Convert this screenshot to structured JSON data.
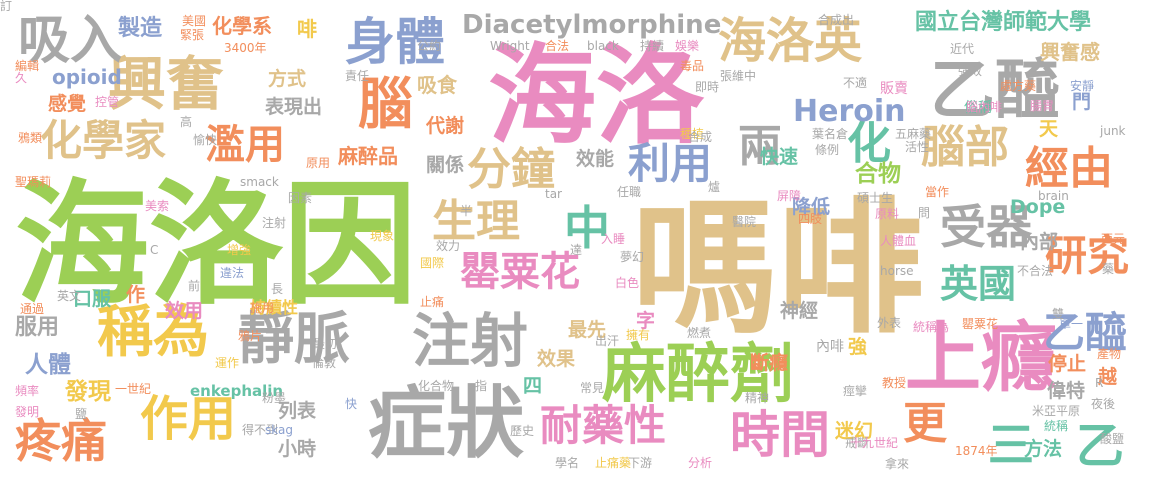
{
  "palette": {
    "tan": "#e0c28a",
    "green": "#9ccf55",
    "pink": "#e98bc0",
    "gray": "#a8a8a8",
    "orange": "#f28e5c",
    "blue": "#8ba0cf",
    "yellow": "#f2c94c",
    "teal": "#66c2a5"
  },
  "words": [
    {
      "text": "嗎啡",
      "color": "tan"
    },
    {
      "text": "海洛因",
      "color": "green"
    },
    {
      "text": "海洛",
      "color": "pink"
    },
    {
      "text": "症狀",
      "color": "gray"
    },
    {
      "text": "上癮",
      "color": "pink"
    },
    {
      "text": "麻醉劑",
      "color": "green"
    },
    {
      "text": "興奮",
      "color": "tan"
    },
    {
      "text": "乙醯",
      "color": "gray"
    },
    {
      "text": "海洛英",
      "color": "tan"
    },
    {
      "text": "吸入",
      "color": "gray"
    },
    {
      "text": "身體",
      "color": "blue"
    },
    {
      "text": "靜脈",
      "color": "gray"
    },
    {
      "text": "注射",
      "color": "gray"
    },
    {
      "text": "稱為",
      "color": "yellow"
    },
    {
      "text": "作用",
      "color": "yellow"
    },
    {
      "text": "疼痛",
      "color": "orange"
    },
    {
      "text": "時間",
      "color": "pink"
    },
    {
      "text": "耐藥性",
      "color": "pink"
    },
    {
      "text": "罌粟花",
      "color": "pink"
    },
    {
      "text": "生理",
      "color": "tan"
    },
    {
      "text": "分鐘",
      "color": "tan"
    },
    {
      "text": "利用",
      "color": "blue"
    },
    {
      "text": "兩",
      "color": "gray"
    },
    {
      "text": "化",
      "color": "teal"
    },
    {
      "text": "腦部",
      "color": "tan"
    },
    {
      "text": "經由",
      "color": "orange"
    },
    {
      "text": "受器",
      "color": "gray"
    },
    {
      "text": "研究",
      "color": "orange"
    },
    {
      "text": "乙醯",
      "color": "blue"
    },
    {
      "text": "英國",
      "color": "teal"
    },
    {
      "text": "中",
      "color": "teal"
    },
    {
      "text": "更",
      "color": "orange"
    },
    {
      "text": "乙",
      "color": "teal"
    },
    {
      "text": "三",
      "color": "teal"
    },
    {
      "text": "腦",
      "color": "orange"
    },
    {
      "text": "化學家",
      "color": "tan"
    },
    {
      "text": "濫用",
      "color": "orange"
    },
    {
      "text": "Diacetylmorphine",
      "color": "gray"
    },
    {
      "text": "國立台灣師範大學",
      "color": "teal"
    },
    {
      "text": "興奮感",
      "color": "tan"
    },
    {
      "text": "Heroin",
      "color": "blue"
    },
    {
      "text": "製造",
      "color": "blue"
    },
    {
      "text": "化學系",
      "color": "orange"
    },
    {
      "text": "麻醉品",
      "color": "orange"
    },
    {
      "text": "表現出",
      "color": "gray"
    },
    {
      "text": "吸食",
      "color": "tan"
    },
    {
      "text": "代謝",
      "color": "orange"
    },
    {
      "text": "關係",
      "color": "gray"
    },
    {
      "text": "效能",
      "color": "gray"
    },
    {
      "text": "快速",
      "color": "teal"
    },
    {
      "text": "合物",
      "color": "green"
    },
    {
      "text": "方式",
      "color": "tan"
    },
    {
      "text": "感覺",
      "color": "orange"
    },
    {
      "text": "opioid",
      "color": "blue"
    },
    {
      "text": "Dope",
      "color": "teal"
    },
    {
      "text": "內部",
      "color": "gray"
    },
    {
      "text": "口服",
      "color": "teal"
    },
    {
      "text": "服用",
      "color": "gray"
    },
    {
      "text": "人體",
      "color": "blue"
    },
    {
      "text": "發現",
      "color": "yellow"
    },
    {
      "text": "效用",
      "color": "pink"
    },
    {
      "text": "最先",
      "color": "tan"
    },
    {
      "text": "效果",
      "color": "tan"
    },
    {
      "text": "字",
      "color": "pink"
    },
    {
      "text": "神經",
      "color": "gray"
    },
    {
      "text": "降低",
      "color": "blue"
    },
    {
      "text": "停止",
      "color": "orange"
    },
    {
      "text": "偉特",
      "color": "gray"
    },
    {
      "text": "方法",
      "color": "teal"
    },
    {
      "text": "迷幻",
      "color": "yellow"
    },
    {
      "text": "斷癮",
      "color": "orange"
    },
    {
      "text": "強",
      "color": "yellow"
    },
    {
      "text": "列表",
      "color": "gray"
    },
    {
      "text": "小時",
      "color": "gray"
    },
    {
      "text": "enkephalin",
      "color": "teal"
    },
    {
      "text": "持續性",
      "color": "yellow"
    },
    {
      "text": "四",
      "color": "teal"
    },
    {
      "text": "天",
      "color": "yellow"
    },
    {
      "text": "門",
      "color": "blue"
    },
    {
      "text": "越",
      "color": "orange"
    },
    {
      "text": "作",
      "color": "orange"
    },
    {
      "text": "內啡",
      "color": "gray"
    },
    {
      "text": "啡",
      "color": "yellow"
    },
    {
      "text": "美國",
      "color": "orange"
    },
    {
      "text": "緊張",
      "color": "orange"
    },
    {
      "text": "3400年",
      "color": "orange"
    },
    {
      "text": "公約",
      "color": "gray"
    },
    {
      "text": "Wright",
      "color": "gray"
    },
    {
      "text": "合法",
      "color": "orange"
    },
    {
      "text": "black",
      "color": "gray"
    },
    {
      "text": "持續",
      "color": "gray"
    },
    {
      "text": "娛樂",
      "color": "pink"
    },
    {
      "text": "合成出",
      "color": "gray"
    },
    {
      "text": "近代",
      "color": "gray"
    },
    {
      "text": "處方藥",
      "color": "orange"
    },
    {
      "text": "安靜",
      "color": "blue"
    },
    {
      "text": "強效",
      "color": "gray"
    },
    {
      "text": "販賣",
      "color": "pink"
    },
    {
      "text": "不適",
      "color": "gray"
    },
    {
      "text": "毒品",
      "color": "orange"
    },
    {
      "text": "張維中",
      "color": "gray"
    },
    {
      "text": "即時",
      "color": "gray"
    },
    {
      "text": "責任",
      "color": "gray"
    },
    {
      "text": "控管",
      "color": "pink"
    },
    {
      "text": "編輯",
      "color": "orange"
    },
    {
      "text": "久",
      "color": "pink"
    },
    {
      "text": "鴉類",
      "color": "orange"
    },
    {
      "text": "聖瑪莉",
      "color": "orange"
    },
    {
      "text": "愉快",
      "color": "gray"
    },
    {
      "text": "原用",
      "color": "orange"
    },
    {
      "text": "種植",
      "color": "yellow"
    },
    {
      "text": "合成",
      "color": "gray"
    },
    {
      "text": "葉名倉",
      "color": "gray"
    },
    {
      "text": "條例",
      "color": "gray"
    },
    {
      "text": "五麻藥",
      "color": "gray"
    },
    {
      "text": "活性",
      "color": "gray"
    },
    {
      "text": "junk",
      "color": "gray"
    },
    {
      "text": "俗稱",
      "color": "teal"
    },
    {
      "text": "腦內啡",
      "color": "pink"
    },
    {
      "text": "腸胃",
      "color": "pink"
    },
    {
      "text": "美索",
      "color": "pink"
    },
    {
      "text": "smack",
      "color": "gray"
    },
    {
      "text": "因素",
      "color": "gray"
    },
    {
      "text": "現象",
      "color": "yellow"
    },
    {
      "text": "效力",
      "color": "gray"
    },
    {
      "text": "任職",
      "color": "gray"
    },
    {
      "text": "tar",
      "color": "gray"
    },
    {
      "text": "爐",
      "color": "gray"
    },
    {
      "text": "醫院",
      "color": "gray"
    },
    {
      "text": "屏障",
      "color": "pink"
    },
    {
      "text": "四肢",
      "color": "orange"
    },
    {
      "text": "碩士生",
      "color": "gray"
    },
    {
      "text": "當作",
      "color": "orange"
    },
    {
      "text": "brain",
      "color": "gray"
    },
    {
      "text": "西元",
      "color": "orange"
    },
    {
      "text": "原料",
      "color": "pink"
    },
    {
      "text": "問",
      "color": "gray"
    },
    {
      "text": "注射",
      "color": "gray"
    },
    {
      "text": "半",
      "color": "gray"
    },
    {
      "text": "國際",
      "color": "yellow"
    },
    {
      "text": "達",
      "color": "gray"
    },
    {
      "text": "入睡",
      "color": "pink"
    },
    {
      "text": "夢幻",
      "color": "gray"
    },
    {
      "text": "白色",
      "color": "pink"
    },
    {
      "text": "人體血",
      "color": "pink"
    },
    {
      "text": "不合法",
      "color": "gray"
    },
    {
      "text": "horse",
      "color": "gray"
    },
    {
      "text": "藥",
      "color": "gray"
    },
    {
      "text": "違法",
      "color": "blue"
    },
    {
      "text": "增強",
      "color": "yellow"
    },
    {
      "text": "長",
      "color": "gray"
    },
    {
      "text": "施用",
      "color": "orange"
    },
    {
      "text": "止痛",
      "color": "orange"
    },
    {
      "text": "通過",
      "color": "orange"
    },
    {
      "text": "英文",
      "color": "gray"
    },
    {
      "text": "前",
      "color": "gray"
    },
    {
      "text": "鴉片",
      "color": "orange"
    },
    {
      "text": "出汗",
      "color": "gray"
    },
    {
      "text": "擁有",
      "color": "yellow"
    },
    {
      "text": "燃煮",
      "color": "gray"
    },
    {
      "text": "外表",
      "color": "gray"
    },
    {
      "text": "統稱為",
      "color": "pink"
    },
    {
      "text": "罌粟花",
      "color": "orange"
    },
    {
      "text": "單一",
      "color": "blue"
    },
    {
      "text": "雙",
      "color": "gray"
    },
    {
      "text": "產物",
      "color": "orange"
    },
    {
      "text": "R",
      "color": "gray"
    },
    {
      "text": "運作",
      "color": "yellow"
    },
    {
      "text": "最初",
      "color": "gray"
    },
    {
      "text": "倫敦",
      "color": "gray"
    },
    {
      "text": "化合物",
      "color": "gray"
    },
    {
      "text": "指",
      "color": "gray"
    },
    {
      "text": "常見",
      "color": "gray"
    },
    {
      "text": "精神",
      "color": "gray"
    },
    {
      "text": "痙攣",
      "color": "gray"
    },
    {
      "text": "教授",
      "color": "orange"
    },
    {
      "text": "米亞平原",
      "color": "gray"
    },
    {
      "text": "夜後",
      "color": "gray"
    },
    {
      "text": "一世紀",
      "color": "orange"
    },
    {
      "text": "頻率",
      "color": "pink"
    },
    {
      "text": "發明",
      "color": "pink"
    },
    {
      "text": "鹽",
      "color": "gray"
    },
    {
      "text": "粉墨",
      "color": "gray"
    },
    {
      "text": "快",
      "color": "blue"
    },
    {
      "text": "得不到",
      "color": "gray"
    },
    {
      "text": "skag",
      "color": "blue"
    },
    {
      "text": "歷史",
      "color": "gray"
    },
    {
      "text": "戒斷",
      "color": "gray"
    },
    {
      "text": "統稱",
      "color": "teal"
    },
    {
      "text": "酸鹽",
      "color": "gray"
    },
    {
      "text": "學名",
      "color": "gray"
    },
    {
      "text": "止痛藥",
      "color": "yellow"
    },
    {
      "text": "下游",
      "color": "gray"
    },
    {
      "text": "分析",
      "color": "pink"
    },
    {
      "text": "十九世紀",
      "color": "pink"
    },
    {
      "text": "拿來",
      "color": "gray"
    },
    {
      "text": "1874年",
      "color": "orange"
    },
    {
      "text": "高",
      "color": "gray"
    },
    {
      "text": "C",
      "color": "gray"
    },
    {
      "text": "訂",
      "color": "gray"
    }
  ]
}
